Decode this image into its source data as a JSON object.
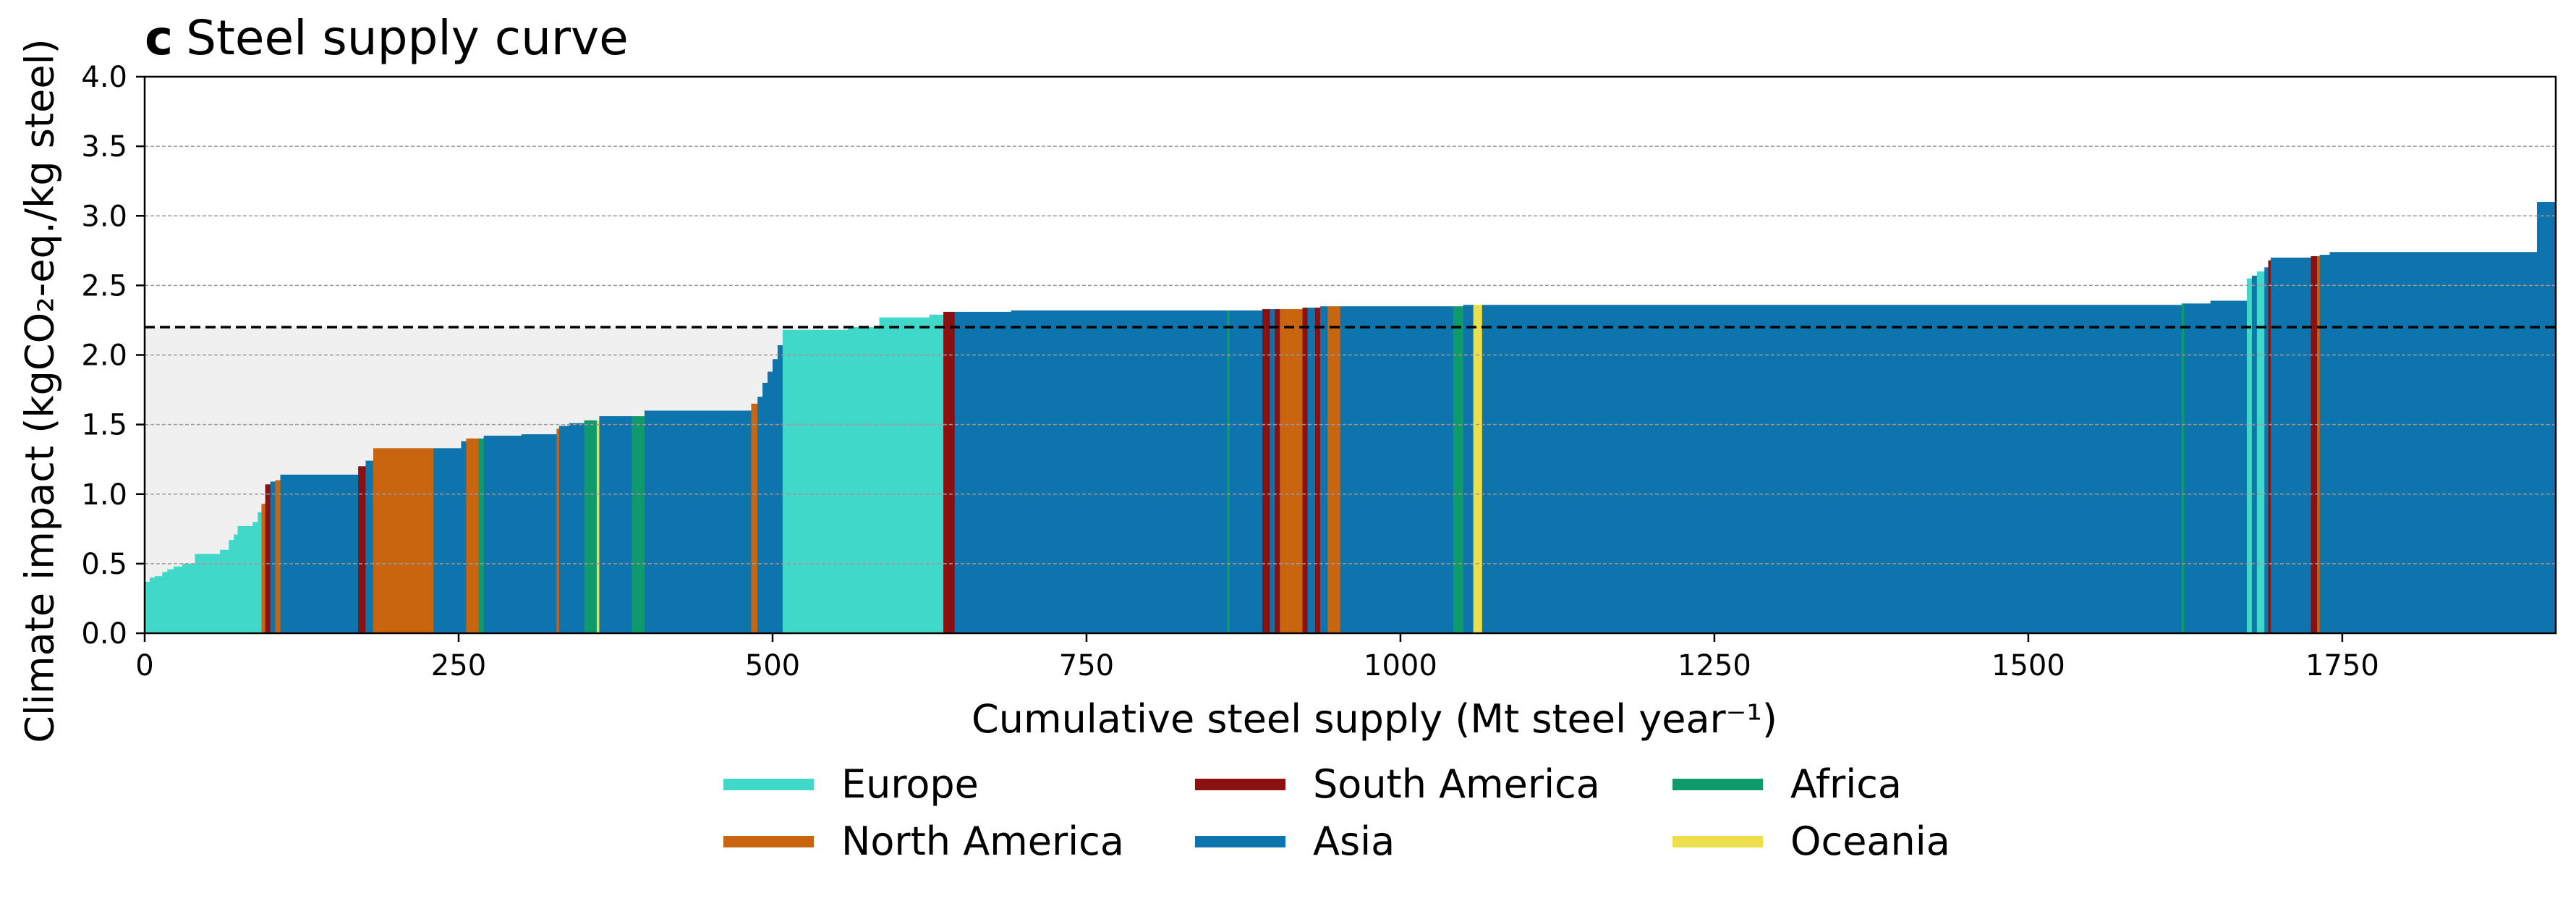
{
  "panel": {
    "letter": "c",
    "title": "Steel supply curve"
  },
  "chart_data": {
    "type": "area",
    "title": "Steel supply curve",
    "xlabel": "Cumulative steel supply (Mt steel year⁻¹)",
    "ylabel": "Climate impact (kgCO₂-eq./kg steel)",
    "xlim": [
      0,
      1920
    ],
    "ylim": [
      0,
      4.0
    ],
    "x_ticks": [
      0,
      250,
      500,
      750,
      1000,
      1250,
      1500,
      1750
    ],
    "y_ticks": [
      "0.0",
      "0.5",
      "1.0",
      "1.5",
      "2.0",
      "2.5",
      "3.0",
      "3.5",
      "4.0"
    ],
    "grid": "horizontal dashed",
    "reference_line": 2.2,
    "colors": {
      "Europe": "#40d9c9",
      "North America": "#c9640f",
      "South America": "#8b1010",
      "Asia": "#0e74ad",
      "Africa": "#0f9a6e",
      "Oceania": "#eddf49"
    },
    "legend": [
      "Europe",
      "North America",
      "South America",
      "Asia",
      "Africa",
      "Oceania"
    ],
    "segments": [
      {
        "x0": 0,
        "x1": 4,
        "y": 0.37,
        "region": "Europe"
      },
      {
        "x0": 4,
        "x1": 8,
        "y": 0.4,
        "region": "Europe"
      },
      {
        "x0": 8,
        "x1": 14,
        "y": 0.41,
        "region": "Europe"
      },
      {
        "x0": 14,
        "x1": 18,
        "y": 0.44,
        "region": "Europe"
      },
      {
        "x0": 18,
        "x1": 23,
        "y": 0.46,
        "region": "Europe"
      },
      {
        "x0": 23,
        "x1": 30,
        "y": 0.48,
        "region": "Europe"
      },
      {
        "x0": 30,
        "x1": 40,
        "y": 0.5,
        "region": "Europe"
      },
      {
        "x0": 40,
        "x1": 60,
        "y": 0.57,
        "region": "Europe"
      },
      {
        "x0": 60,
        "x1": 67,
        "y": 0.6,
        "region": "Europe"
      },
      {
        "x0": 67,
        "x1": 71,
        "y": 0.67,
        "region": "Europe"
      },
      {
        "x0": 71,
        "x1": 74,
        "y": 0.71,
        "region": "Europe"
      },
      {
        "x0": 74,
        "x1": 86,
        "y": 0.77,
        "region": "Europe"
      },
      {
        "x0": 86,
        "x1": 90,
        "y": 0.8,
        "region": "Europe"
      },
      {
        "x0": 90,
        "x1": 93,
        "y": 0.87,
        "region": "Europe"
      },
      {
        "x0": 93,
        "x1": 96,
        "y": 0.93,
        "region": "North America"
      },
      {
        "x0": 96,
        "x1": 100,
        "y": 1.07,
        "region": "South America"
      },
      {
        "x0": 100,
        "x1": 104,
        "y": 1.09,
        "region": "Asia"
      },
      {
        "x0": 104,
        "x1": 108,
        "y": 1.1,
        "region": "North America"
      },
      {
        "x0": 108,
        "x1": 170,
        "y": 1.14,
        "region": "Asia"
      },
      {
        "x0": 170,
        "x1": 176,
        "y": 1.2,
        "region": "South America"
      },
      {
        "x0": 176,
        "x1": 182,
        "y": 1.24,
        "region": "Asia"
      },
      {
        "x0": 182,
        "x1": 230,
        "y": 1.33,
        "region": "North America"
      },
      {
        "x0": 230,
        "x1": 252,
        "y": 1.33,
        "region": "Asia"
      },
      {
        "x0": 252,
        "x1": 256,
        "y": 1.38,
        "region": "Asia"
      },
      {
        "x0": 256,
        "x1": 266,
        "y": 1.4,
        "region": "North America"
      },
      {
        "x0": 266,
        "x1": 270,
        "y": 1.4,
        "region": "Africa"
      },
      {
        "x0": 270,
        "x1": 300,
        "y": 1.42,
        "region": "Asia"
      },
      {
        "x0": 300,
        "x1": 328,
        "y": 1.43,
        "region": "Asia"
      },
      {
        "x0": 328,
        "x1": 330,
        "y": 1.47,
        "region": "North America"
      },
      {
        "x0": 330,
        "x1": 338,
        "y": 1.49,
        "region": "Asia"
      },
      {
        "x0": 338,
        "x1": 350,
        "y": 1.51,
        "region": "Asia"
      },
      {
        "x0": 350,
        "x1": 360,
        "y": 1.53,
        "region": "Africa"
      },
      {
        "x0": 360,
        "x1": 362,
        "y": 1.53,
        "region": "Oceania"
      },
      {
        "x0": 362,
        "x1": 388,
        "y": 1.56,
        "region": "Asia"
      },
      {
        "x0": 388,
        "x1": 398,
        "y": 1.56,
        "region": "Africa"
      },
      {
        "x0": 398,
        "x1": 483,
        "y": 1.6,
        "region": "Asia"
      },
      {
        "x0": 483,
        "x1": 488,
        "y": 1.65,
        "region": "North America"
      },
      {
        "x0": 488,
        "x1": 492,
        "y": 1.7,
        "region": "Asia"
      },
      {
        "x0": 492,
        "x1": 496,
        "y": 1.8,
        "region": "Asia"
      },
      {
        "x0": 496,
        "x1": 500,
        "y": 1.88,
        "region": "Asia"
      },
      {
        "x0": 500,
        "x1": 504,
        "y": 1.97,
        "region": "Asia"
      },
      {
        "x0": 504,
        "x1": 508,
        "y": 2.07,
        "region": "Asia"
      },
      {
        "x0": 508,
        "x1": 560,
        "y": 2.18,
        "region": "Europe"
      },
      {
        "x0": 560,
        "x1": 585,
        "y": 2.2,
        "region": "Europe"
      },
      {
        "x0": 585,
        "x1": 625,
        "y": 2.27,
        "region": "Europe"
      },
      {
        "x0": 625,
        "x1": 636,
        "y": 2.29,
        "region": "Europe"
      },
      {
        "x0": 636,
        "x1": 645,
        "y": 2.31,
        "region": "South America"
      },
      {
        "x0": 645,
        "x1": 690,
        "y": 2.31,
        "region": "Asia"
      },
      {
        "x0": 690,
        "x1": 862,
        "y": 2.32,
        "region": "Asia"
      },
      {
        "x0": 862,
        "x1": 864,
        "y": 2.32,
        "region": "Africa"
      },
      {
        "x0": 864,
        "x1": 890,
        "y": 2.32,
        "region": "Asia"
      },
      {
        "x0": 890,
        "x1": 896,
        "y": 2.33,
        "region": "South America"
      },
      {
        "x0": 896,
        "x1": 900,
        "y": 2.33,
        "region": "Asia"
      },
      {
        "x0": 900,
        "x1": 904,
        "y": 2.33,
        "region": "South America"
      },
      {
        "x0": 904,
        "x1": 922,
        "y": 2.33,
        "region": "North America"
      },
      {
        "x0": 922,
        "x1": 926,
        "y": 2.34,
        "region": "South America"
      },
      {
        "x0": 926,
        "x1": 932,
        "y": 2.34,
        "region": "Asia"
      },
      {
        "x0": 932,
        "x1": 936,
        "y": 2.34,
        "region": "South America"
      },
      {
        "x0": 936,
        "x1": 942,
        "y": 2.35,
        "region": "Asia"
      },
      {
        "x0": 942,
        "x1": 952,
        "y": 2.35,
        "region": "North America"
      },
      {
        "x0": 952,
        "x1": 1042,
        "y": 2.35,
        "region": "Asia"
      },
      {
        "x0": 1042,
        "x1": 1050,
        "y": 2.35,
        "region": "Africa"
      },
      {
        "x0": 1050,
        "x1": 1058,
        "y": 2.36,
        "region": "Asia"
      },
      {
        "x0": 1058,
        "x1": 1065,
        "y": 2.36,
        "region": "Oceania"
      },
      {
        "x0": 1065,
        "x1": 1622,
        "y": 2.36,
        "region": "Asia"
      },
      {
        "x0": 1622,
        "x1": 1624,
        "y": 2.37,
        "region": "Africa"
      },
      {
        "x0": 1624,
        "x1": 1645,
        "y": 2.37,
        "region": "Asia"
      },
      {
        "x0": 1645,
        "x1": 1674,
        "y": 2.39,
        "region": "Asia"
      },
      {
        "x0": 1674,
        "x1": 1678,
        "y": 2.55,
        "region": "Europe"
      },
      {
        "x0": 1678,
        "x1": 1682,
        "y": 2.57,
        "region": "Asia"
      },
      {
        "x0": 1682,
        "x1": 1688,
        "y": 2.6,
        "region": "Europe"
      },
      {
        "x0": 1688,
        "x1": 1691,
        "y": 2.63,
        "region": "Asia"
      },
      {
        "x0": 1691,
        "x1": 1693,
        "y": 2.68,
        "region": "South America"
      },
      {
        "x0": 1693,
        "x1": 1725,
        "y": 2.7,
        "region": "Asia"
      },
      {
        "x0": 1725,
        "x1": 1730,
        "y": 2.71,
        "region": "South America"
      },
      {
        "x0": 1730,
        "x1": 1732,
        "y": 2.71,
        "region": "North America"
      },
      {
        "x0": 1732,
        "x1": 1740,
        "y": 2.72,
        "region": "Asia"
      },
      {
        "x0": 1740,
        "x1": 1905,
        "y": 2.74,
        "region": "Asia"
      },
      {
        "x0": 1905,
        "x1": 1920,
        "y": 3.1,
        "region": "Asia"
      }
    ]
  }
}
